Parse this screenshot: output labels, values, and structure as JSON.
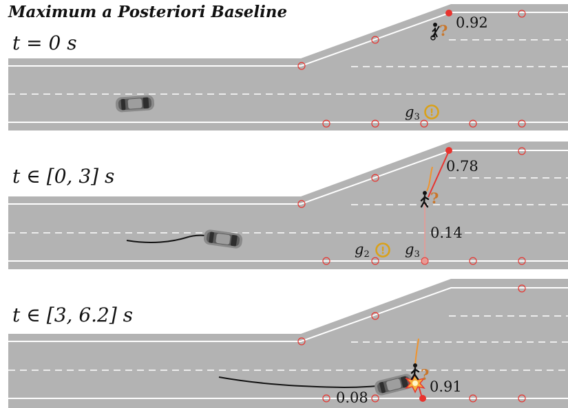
{
  "title": "Maximum a Posteriori Baseline",
  "colors": {
    "road": "#b3b3b3",
    "lane_line": "#ffffff",
    "goal_marker": "#e8332e",
    "warning": "#d9a11a",
    "question": "#c9762a",
    "trajectory": "#111111",
    "pedestrian_path": "#f0942e",
    "explosion": "#f6b13a"
  },
  "panels": [
    {
      "time_label": "t = 0  s",
      "probabilities": [
        {
          "value": "0.92"
        }
      ],
      "goal_labels": [
        {
          "name": "g",
          "subscript": "3",
          "warning": "!"
        }
      ],
      "actors": [
        "car-icon",
        "pedestrian-scooter-icon",
        "question-mark-icon",
        "warning-icon"
      ]
    },
    {
      "time_label": "t ∈ [0, 3]  s",
      "probabilities": [
        {
          "value": "0.78"
        },
        {
          "value": "0.14"
        }
      ],
      "goal_labels": [
        {
          "name": "g",
          "subscript": "2",
          "warning": "!"
        },
        {
          "name": "g",
          "subscript": "3",
          "warning": ""
        }
      ],
      "actors": [
        "car-icon",
        "pedestrian-walking-icon",
        "question-mark-icon",
        "warning-icon"
      ]
    },
    {
      "time_label": "t ∈ [3, 6.2]  s",
      "probabilities": [
        {
          "value": "0.91"
        },
        {
          "value": "0.08"
        }
      ],
      "goal_labels": [],
      "actors": [
        "car-icon",
        "pedestrian-walking-icon",
        "question-mark-icon",
        "collision-icon"
      ]
    }
  ],
  "question_glyph": "?"
}
